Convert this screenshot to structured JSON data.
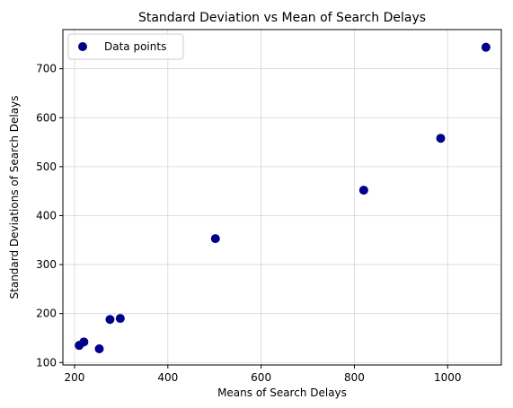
{
  "chart_data": {
    "type": "scatter",
    "title": "Standard Deviation vs Mean of Search Delays",
    "xlabel": "Means of Search Delays",
    "ylabel": "Standard Deviations of Search Delays",
    "xlim": [
      175,
      1115
    ],
    "ylim": [
      95,
      780
    ],
    "xticks": [
      200,
      400,
      600,
      800,
      1000
    ],
    "yticks": [
      100,
      200,
      300,
      400,
      500,
      600,
      700
    ],
    "grid": true,
    "legend_position": "top-left",
    "series": [
      {
        "name": "Data points",
        "color": "#00008b",
        "x": [
          210,
          220,
          253,
          276,
          298,
          502,
          820,
          985,
          1082
        ],
        "y": [
          135,
          142,
          128,
          188,
          190,
          353,
          452,
          558,
          744
        ]
      }
    ]
  }
}
